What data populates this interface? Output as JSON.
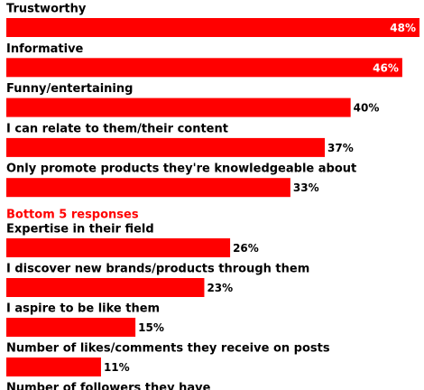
{
  "chart_data": {
    "type": "bar",
    "orientation": "horizontal",
    "color": "#ff0000",
    "categories": [
      "Trustworthy",
      "Informative",
      "Funny/entertaining",
      "I can relate to them/their content",
      "Only promote products they're knowledgeable about",
      "Expertise in their field",
      "I discover new brands/products through them",
      "I aspire to be like them",
      "Number of likes/comments they receive on posts",
      "Number of followers they have"
    ],
    "values": [
      48,
      46,
      40,
      37,
      33,
      26,
      23,
      15,
      11,
      null
    ],
    "value_labels": [
      "48%",
      "46%",
      "40%",
      "37%",
      "33%",
      "26%",
      "23%",
      "15%",
      "11%",
      null
    ],
    "section_label": "Bottom 5 responses",
    "section_color": "#ff0000"
  }
}
